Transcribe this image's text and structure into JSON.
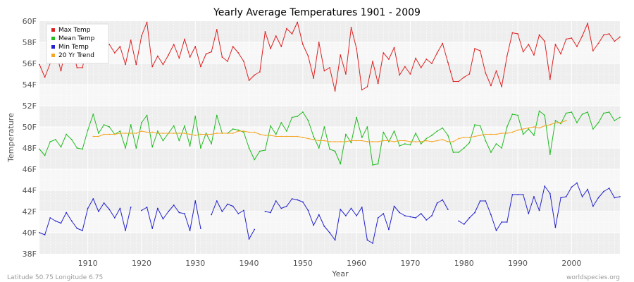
{
  "chart_data": {
    "type": "line",
    "title": "Yearly Average Temperatures 1901 - 2009",
    "xlabel": "Year",
    "ylabel": "Temperature",
    "xlim": [
      1901,
      2009
    ],
    "ylim": [
      38,
      60
    ],
    "x_ticks": [
      1910,
      1920,
      1930,
      1940,
      1950,
      1960,
      1970,
      1980,
      1990,
      2000
    ],
    "y_ticks": [
      38,
      40,
      42,
      44,
      46,
      48,
      50,
      52,
      54,
      56,
      58,
      60
    ],
    "y_tick_labels": [
      "38F",
      "40F",
      "42F",
      "44F",
      "46F",
      "48F",
      "50F",
      "52F",
      "54F",
      "56F",
      "58F",
      "60F"
    ],
    "grid": true,
    "legend_position": "top-left",
    "series": [
      {
        "name": "Max Temp",
        "color": "#dd2222",
        "start_year": 1901,
        "values": [
          55.9,
          54.7,
          56.0,
          57.2,
          55.3,
          57.7,
          57.5,
          55.6,
          55.6,
          57.9,
          57.3,
          58.7,
          57.8,
          57.8,
          57.0,
          57.6,
          55.9,
          58.2,
          55.9,
          58.6,
          59.9,
          55.7,
          56.7,
          55.9,
          56.8,
          57.8,
          56.5,
          58.3,
          56.6,
          57.6,
          55.7,
          56.9,
          57.1,
          59.2,
          56.6,
          56.2,
          57.6,
          57.0,
          56.2,
          54.4,
          54.9,
          55.2,
          59.0,
          57.4,
          58.6,
          57.6,
          59.3,
          58.8,
          59.9,
          57.8,
          56.7,
          54.6,
          58.0,
          55.3,
          55.6,
          53.4,
          56.8,
          55.0,
          59.4,
          57.4,
          53.5,
          53.8,
          56.2,
          54.1,
          57.0,
          56.4,
          57.5,
          54.9,
          55.7,
          55.0,
          56.5,
          55.6,
          56.4,
          56.0,
          57.0,
          57.9,
          56.1,
          54.3,
          54.3,
          54.7,
          55.0,
          57.4,
          57.2,
          55.1,
          53.9,
          55.3,
          53.8,
          56.7,
          58.9,
          58.8,
          57.1,
          57.8,
          56.8,
          58.7,
          58.1,
          54.5,
          57.8,
          56.9,
          58.3,
          58.4,
          57.6,
          58.6,
          59.8,
          57.2,
          57.9,
          58.7,
          58.8,
          58.1,
          58.5
        ]
      },
      {
        "name": "Mean Temp",
        "color": "#22bb22",
        "start_year": 1901,
        "values": [
          47.9,
          47.3,
          48.6,
          48.8,
          48.1,
          49.3,
          48.8,
          48.0,
          47.9,
          49.7,
          51.2,
          49.4,
          50.2,
          50.0,
          49.3,
          49.6,
          48.0,
          50.2,
          48.0,
          50.4,
          51.1,
          48.1,
          49.6,
          48.7,
          49.4,
          50.1,
          48.7,
          50.1,
          48.2,
          51.0,
          48.0,
          49.4,
          48.4,
          51.1,
          49.4,
          49.4,
          49.8,
          49.7,
          49.5,
          48.0,
          46.9,
          47.7,
          47.8,
          50.1,
          49.3,
          50.4,
          49.6,
          50.9,
          51.0,
          51.4,
          50.6,
          49.1,
          48.0,
          50.0,
          47.9,
          47.7,
          46.5,
          49.3,
          48.5,
          50.9,
          49.0,
          50.0,
          46.4,
          46.5,
          49.5,
          48.6,
          49.6,
          48.2,
          48.4,
          48.3,
          49.4,
          48.4,
          48.9,
          49.2,
          49.6,
          49.9,
          49.2,
          47.6,
          47.6,
          48.0,
          48.5,
          50.2,
          50.1,
          48.7,
          47.6,
          48.4,
          48.0,
          50.0,
          51.2,
          51.1,
          49.3,
          49.8,
          49.2,
          51.5,
          51.1,
          47.4,
          50.6,
          50.3,
          51.3,
          51.4,
          50.4,
          51.2,
          51.4,
          49.8,
          50.4,
          51.3,
          51.4,
          50.6,
          50.9
        ]
      },
      {
        "name": "Min Temp",
        "color": "#2222cc",
        "start_year": 1901,
        "values": [
          40.0,
          39.8,
          41.4,
          41.1,
          40.9,
          41.9,
          41.1,
          40.4,
          40.2,
          42.3,
          43.2,
          42.0,
          42.8,
          42.2,
          41.4,
          42.3,
          40.2,
          42.4,
          null,
          42.1,
          42.4,
          40.4,
          42.3,
          41.3,
          42.0,
          42.6,
          41.9,
          41.8,
          40.2,
          43.0,
          40.4,
          null,
          41.7,
          43.0,
          42.0,
          42.7,
          42.5,
          41.8,
          42.1,
          39.4,
          40.3,
          null,
          42.0,
          41.9,
          43.0,
          42.3,
          42.5,
          43.2,
          43.1,
          42.9,
          42.1,
          40.7,
          41.7,
          40.6,
          40.0,
          39.3,
          42.2,
          41.6,
          42.3,
          41.6,
          42.4,
          39.3,
          39.0,
          41.4,
          41.8,
          40.3,
          42.5,
          41.9,
          41.6,
          41.5,
          41.4,
          41.8,
          41.2,
          41.6,
          42.8,
          43.1,
          42.2,
          null,
          41.1,
          40.8,
          41.4,
          41.9,
          43.0,
          43.0,
          41.7,
          40.2,
          41.0,
          41.0,
          43.6,
          43.6,
          43.6,
          41.8,
          43.4,
          42.1,
          44.4,
          43.7,
          40.5,
          43.3,
          43.4,
          44.3,
          44.7,
          43.4,
          44.1,
          42.5,
          43.3,
          43.9,
          44.2,
          43.3,
          43.4
        ]
      },
      {
        "name": "20 Yr Trend",
        "color": "#f5a623",
        "start_year": 1911,
        "values": [
          49.1,
          49.1,
          49.3,
          49.3,
          49.3,
          49.4,
          49.4,
          49.4,
          49.4,
          49.6,
          49.5,
          49.5,
          49.4,
          49.4,
          49.4,
          49.4,
          49.4,
          49.4,
          49.3,
          49.2,
          49.3,
          49.3,
          49.3,
          49.4,
          49.4,
          49.4,
          49.4,
          49.6,
          49.6,
          49.5,
          49.5,
          49.3,
          49.2,
          49.2,
          49.1,
          49.1,
          49.1,
          49.1,
          49.1,
          49.0,
          48.9,
          48.8,
          48.7,
          48.7,
          48.6,
          48.6,
          48.6,
          48.6,
          48.7,
          48.7,
          48.7,
          48.6,
          48.6,
          48.6,
          48.7,
          48.7,
          48.6,
          48.7,
          48.7,
          48.6,
          48.6,
          48.6,
          48.7,
          48.6,
          48.7,
          48.8,
          48.6,
          48.6,
          48.9,
          49.0,
          49.0,
          49.1,
          49.2,
          49.3,
          49.3,
          49.3,
          49.4,
          49.4,
          49.5,
          49.7,
          49.8,
          49.9,
          50.0,
          49.9,
          50.1,
          50.2,
          50.4,
          50.4,
          50.6
        ]
      }
    ]
  },
  "footer": {
    "location": "Latitude 50.75 Longitude 6.75",
    "source": "worldspecies.org"
  }
}
